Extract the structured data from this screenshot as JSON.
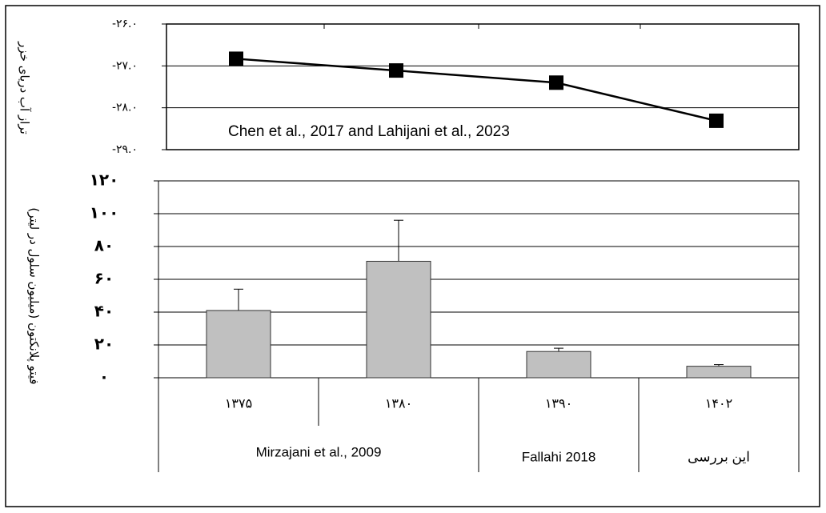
{
  "chart_data": [
    {
      "type": "line",
      "y_label": "تراز آب دریای خزر",
      "annotation": "Chen et al., 2017 and Lahijani et al., 2023",
      "values": [
        -26.83,
        -27.11,
        -27.4,
        -28.31
      ],
      "color": "#000000",
      "ylim": [
        -29,
        -26
      ],
      "yticks": [
        {
          "value": -26,
          "label": "-۲۶.۰"
        },
        {
          "value": -27,
          "label": "-۲۷.۰"
        },
        {
          "value": -28,
          "label": "-۲۸.۰"
        },
        {
          "value": -29,
          "label": "-۲۹.۰"
        }
      ],
      "grid": true
    },
    {
      "type": "bar",
      "y_label": "فیتو پلانکتون (میلیون سلول در لیتر)",
      "categories": [
        "۱۳۷۵",
        "۱۳۸۰",
        "۱۳۹۰",
        "۱۴۰۲"
      ],
      "groups": [
        "Mirzajani et al., 2009",
        "Fallahi 2018",
        "این بررسی"
      ],
      "values": [
        41,
        71,
        16,
        7
      ],
      "errors": [
        13,
        25,
        2,
        1
      ],
      "color": "#c0c0c0",
      "ylim": [
        0,
        120
      ],
      "yticks": [
        {
          "value": 0,
          "label": "۰"
        },
        {
          "value": 20,
          "label": "۲۰"
        },
        {
          "value": 40,
          "label": "۴۰"
        },
        {
          "value": 60,
          "label": "۶۰"
        },
        {
          "value": 80,
          "label": "۸۰"
        },
        {
          "value": 100,
          "label": "۱۰۰"
        },
        {
          "value": 120,
          "label": "۱۲۰"
        }
      ],
      "grid": true
    }
  ]
}
